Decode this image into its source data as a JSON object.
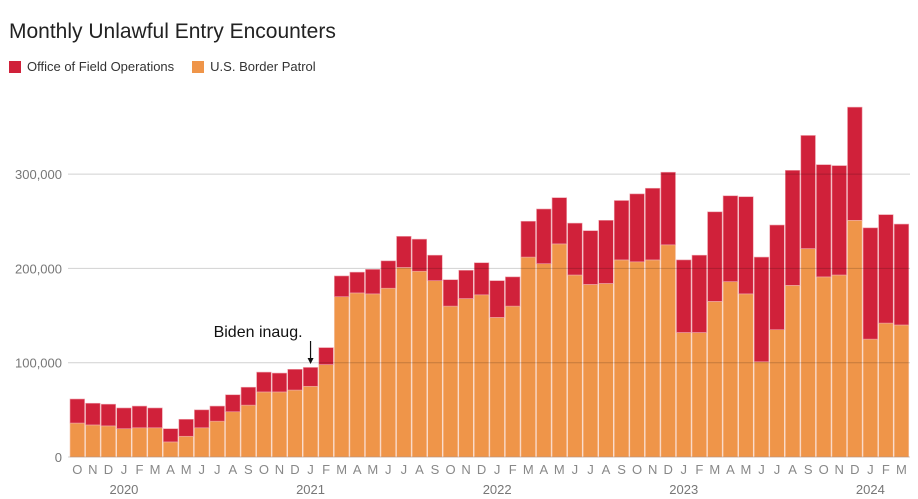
{
  "chart_data": {
    "type": "bar",
    "stacked": true,
    "title": "Monthly Unlawful Entry Encounters",
    "xlabel": "",
    "ylabel": "",
    "ylim": [
      0,
      380000
    ],
    "y_ticks": [
      0,
      100000,
      200000,
      300000
    ],
    "y_tick_labels": [
      "0",
      "100,000",
      "200,000",
      "300,000"
    ],
    "grid": true,
    "legend_position": "top-left",
    "colors": {
      "Office of Field Operations": "#d0213a",
      "U.S. Border Patrol": "#ef9549"
    },
    "month_labels": [
      "O",
      "N",
      "D",
      "J",
      "F",
      "M",
      "A",
      "M",
      "J",
      "J",
      "A",
      "S",
      "O",
      "N",
      "D",
      "J",
      "F",
      "M",
      "A",
      "M",
      "J",
      "J",
      "A",
      "S",
      "O",
      "N",
      "D",
      "J",
      "F",
      "M",
      "A",
      "M",
      "J",
      "J",
      "A",
      "S",
      "O",
      "N",
      "D",
      "J",
      "F",
      "M",
      "A",
      "M",
      "J",
      "J",
      "A",
      "S",
      "O",
      "N",
      "D",
      "J",
      "F",
      "M"
    ],
    "year_labels": [
      {
        "label": "2020",
        "index": 3
      },
      {
        "label": "2021",
        "index": 15
      },
      {
        "label": "2022",
        "index": 27
      },
      {
        "label": "2023",
        "index": 39
      },
      {
        "label": "2024",
        "index": 51
      }
    ],
    "series": [
      {
        "name": "U.S. Border Patrol",
        "values": [
          36000,
          34000,
          33000,
          30000,
          31000,
          31000,
          16000,
          22000,
          31000,
          38000,
          48000,
          55000,
          69000,
          69000,
          71000,
          75000,
          98000,
          170000,
          174000,
          173000,
          179000,
          201000,
          197000,
          187000,
          160000,
          168000,
          172000,
          148000,
          160000,
          212000,
          205000,
          226000,
          193000,
          183000,
          184000,
          209000,
          207000,
          209000,
          225000,
          132000,
          132000,
          165000,
          186000,
          173000,
          101000,
          135000,
          182000,
          221000,
          191000,
          193000,
          251000,
          125000,
          142000,
          140000
        ]
      },
      {
        "name": "Office of Field Operations",
        "values": [
          25500,
          23000,
          23000,
          22000,
          23000,
          21000,
          14000,
          18000,
          19000,
          16000,
          18000,
          19000,
          21000,
          20000,
          22000,
          20000,
          18000,
          22000,
          22000,
          26000,
          29000,
          33000,
          34000,
          27000,
          28000,
          30000,
          34000,
          39000,
          31000,
          38000,
          58000,
          49000,
          55000,
          57000,
          67000,
          63000,
          72000,
          76000,
          77000,
          77000,
          82000,
          95000,
          91000,
          103000,
          111000,
          111000,
          122000,
          120000,
          119000,
          116000,
          120000,
          118000,
          115000,
          107000
        ]
      }
    ],
    "annotations": [
      {
        "text": "Biden inaug.",
        "index": 15
      }
    ]
  }
}
